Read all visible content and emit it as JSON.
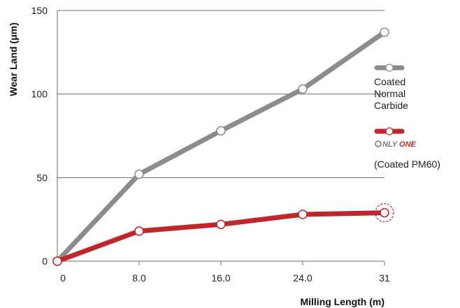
{
  "chart_data": {
    "type": "line",
    "xlabel": "Milling Length (m)",
    "ylabel": "Wear Land (μm)",
    "x": [
      0,
      8.0,
      16.0,
      24.0,
      31
    ],
    "x_tick_labels": [
      "0",
      "8.0",
      "16.0",
      "24.0",
      "31"
    ],
    "xlim": [
      0,
      31
    ],
    "ylim": [
      0,
      150
    ],
    "y_ticks": [
      0,
      50,
      100,
      150
    ],
    "y_tick_labels": [
      "0",
      "50",
      "100",
      "150"
    ],
    "grid": "horizontal",
    "legend_position": "right",
    "series": [
      {
        "name": "Coated Normal Carbide",
        "legend_lines": [
          "Coated",
          "Normal",
          "Carbide"
        ],
        "color": "#8c8c8c",
        "values": [
          0,
          52,
          78,
          103,
          137
        ]
      },
      {
        "name": "ONLY ONE (Coated PM60)",
        "legend_brand": "ONLY ONE",
        "legend_lines": [
          "(Coated PM60)"
        ],
        "color": "#c0272d",
        "values": [
          0,
          18,
          22,
          28,
          29
        ],
        "highlight_last": true
      }
    ]
  }
}
